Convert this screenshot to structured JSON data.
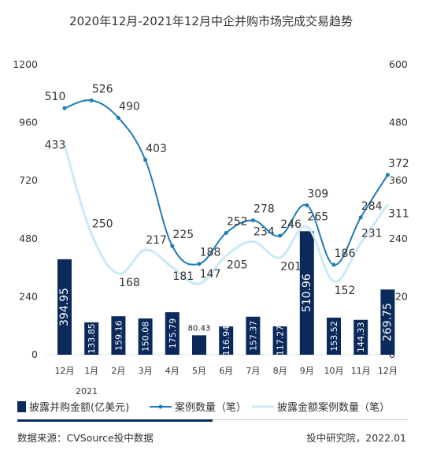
{
  "chart_data": {
    "type": "bar",
    "title": "2020年12月-2021年12月中企并购市场完成交易趋势",
    "categories": [
      "12月",
      "1月",
      "2月",
      "3月",
      "4月",
      "5月",
      "6月",
      "7月",
      "8月",
      "9月",
      "10月",
      "11月",
      "12月"
    ],
    "year_label": "2021",
    "y_left": {
      "ticks": [
        "0",
        "240",
        "480",
        "720",
        "960",
        "1200"
      ],
      "range": [
        0,
        1200
      ]
    },
    "y_right": {
      "ticks": [
        "0",
        "120",
        "240",
        "360",
        "480",
        "600"
      ],
      "range": [
        0,
        600
      ]
    },
    "series": [
      {
        "name": "披露并购金额(亿美元)",
        "kind": "bar",
        "axis": "left",
        "color": "#0b2a5c",
        "values": [
          394.95,
          133.85,
          159.16,
          150.08,
          175.79,
          80.43,
          116.94,
          157.37,
          117.27,
          510.96,
          153.52,
          144.33,
          269.75
        ],
        "labels": [
          "394.95",
          "133.85",
          "159.16",
          "150.08",
          "175.79",
          "80.43",
          "116.94",
          "157.37",
          "117.27",
          "510.96",
          "153.52",
          "144.33",
          "269.75"
        ]
      },
      {
        "name": "案例数量（笔）",
        "kind": "line",
        "axis": "right",
        "color": "#1f7bb8",
        "values": [
          510,
          526,
          490,
          403,
          225,
          188,
          252,
          278,
          246,
          309,
          186,
          284,
          372
        ],
        "labels": [
          "510",
          "526",
          "490",
          "403",
          "225",
          "188",
          "252",
          "278",
          "246",
          "309",
          "186",
          "284",
          "372"
        ]
      },
      {
        "name": "披露金额案例数量（笔）",
        "kind": "line",
        "axis": "right",
        "color": "#c9eaf7",
        "values": [
          433,
          250,
          168,
          217,
          181,
          147,
          205,
          234,
          201,
          265,
          152,
          231,
          311
        ],
        "labels": [
          "433",
          "250",
          "168",
          "217",
          "181",
          "147",
          "205",
          "234",
          "201",
          "265",
          "152",
          "231",
          "311"
        ]
      }
    ]
  },
  "footer": {
    "source": "数据来源：CVSource投中数据",
    "credit": "投中研究院，2022.01"
  }
}
